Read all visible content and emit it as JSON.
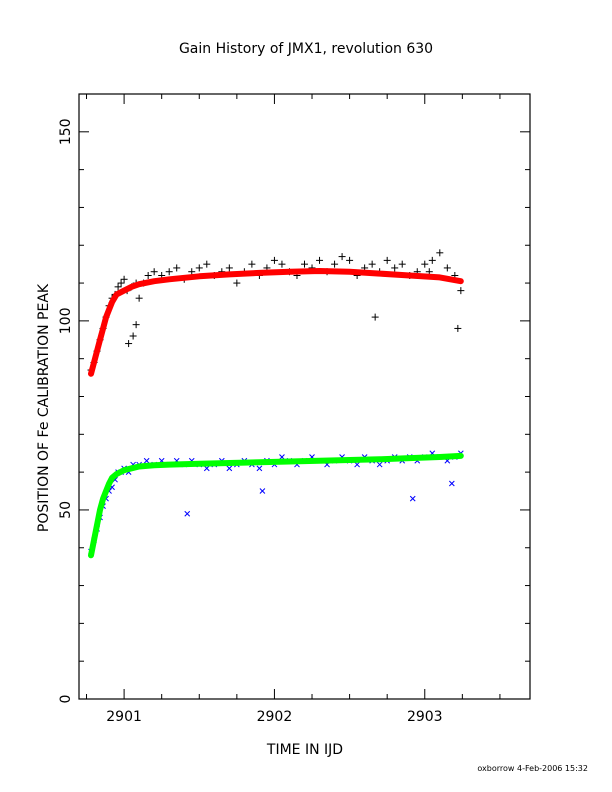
{
  "chart_data": {
    "type": "scatter",
    "title": "Gain History of JMX1, revolution 630",
    "xlabel": "TIME IN IJD",
    "ylabel": "POSITION OF Fe CALIBRATION PEAK",
    "footer": "oxborrow  4-Feb-2006 15:32",
    "xlim": [
      2900.7,
      2903.7
    ],
    "ylim": [
      0,
      160
    ],
    "xticks": [
      2901,
      2902,
      2903
    ],
    "xtick_labels": [
      "2901",
      "2902",
      "2903"
    ],
    "yticks": [
      0,
      50,
      100,
      150
    ],
    "ytick_labels": [
      "0",
      "50",
      "100",
      "150"
    ],
    "grid": false,
    "legend": "none",
    "series": [
      {
        "marker": "plus",
        "color": "#000000",
        "x": [
          2900.78,
          2900.8,
          2900.82,
          2900.84,
          2900.86,
          2900.88,
          2900.9,
          2900.92,
          2900.94,
          2900.96,
          2900.98,
          2901.0,
          2901.02,
          2901.05,
          2901.08,
          2901.1,
          2901.13,
          2901.16,
          2901.2,
          2901.25,
          2901.3,
          2901.35,
          2901.4,
          2901.45,
          2901.5,
          2901.55,
          2901.6,
          2901.65,
          2901.7,
          2901.75,
          2901.8,
          2901.85,
          2901.9,
          2901.95,
          2902.0,
          2902.05,
          2902.1,
          2902.15,
          2902.2,
          2902.25,
          2902.3,
          2902.35,
          2902.4,
          2902.45,
          2902.5,
          2902.55,
          2902.6,
          2902.65,
          2902.7,
          2902.75,
          2902.8,
          2902.85,
          2902.9,
          2902.95,
          2903.0,
          2903.05,
          2903.1,
          2903.15,
          2903.2,
          2903.24,
          2903.03,
          2901.03,
          2901.06,
          2901.08,
          2902.67,
          2903.22
        ],
        "values": [
          87,
          89,
          92,
          95,
          98,
          101,
          104,
          106,
          107,
          109,
          110,
          111,
          108,
          109,
          110,
          106,
          110,
          112,
          113,
          112,
          113,
          114,
          111,
          113,
          114,
          115,
          112,
          113,
          114,
          110,
          113,
          115,
          112,
          114,
          116,
          115,
          113,
          112,
          115,
          114,
          116,
          113,
          115,
          117,
          116,
          112,
          114,
          115,
          113,
          116,
          114,
          115,
          112,
          113,
          115,
          116,
          118,
          114,
          112,
          108,
          113,
          94,
          96,
          99,
          101,
          98
        ]
      },
      {
        "marker": "cross",
        "color": "#0000ff",
        "x": [
          2900.78,
          2900.8,
          2900.82,
          2900.84,
          2900.86,
          2900.88,
          2900.9,
          2900.92,
          2900.94,
          2900.96,
          2900.98,
          2901.0,
          2901.03,
          2901.06,
          2901.1,
          2901.15,
          2901.2,
          2901.25,
          2901.3,
          2901.35,
          2901.4,
          2901.45,
          2901.5,
          2901.55,
          2901.6,
          2901.65,
          2901.7,
          2901.75,
          2901.8,
          2901.85,
          2901.9,
          2901.95,
          2902.0,
          2902.05,
          2902.1,
          2902.15,
          2902.2,
          2902.25,
          2902.3,
          2902.35,
          2902.4,
          2902.45,
          2902.5,
          2902.55,
          2902.6,
          2902.65,
          2902.7,
          2902.75,
          2902.8,
          2902.85,
          2902.9,
          2902.95,
          2903.0,
          2903.05,
          2903.1,
          2903.15,
          2903.2,
          2903.24,
          2901.42,
          2901.92,
          2902.92,
          2903.18
        ],
        "values": [
          39,
          42,
          45,
          48,
          51,
          53,
          55,
          56,
          58,
          60,
          60,
          61,
          60,
          62,
          62,
          63,
          62,
          63,
          62,
          63,
          62,
          63,
          62,
          61,
          62,
          63,
          61,
          62,
          63,
          62,
          61,
          63,
          62,
          64,
          63,
          62,
          63,
          64,
          63,
          62,
          63,
          64,
          63,
          62,
          64,
          63,
          62,
          63,
          64,
          63,
          64,
          63,
          64,
          65,
          64,
          63,
          64,
          65,
          49,
          55,
          53,
          57
        ]
      },
      {
        "name": "",
        "type": "fit",
        "color": "#ff0000",
        "x": [
          2900.78,
          2900.8,
          2900.82,
          2900.84,
          2900.86,
          2900.88,
          2900.9,
          2900.92,
          2900.95,
          2901.0,
          2901.05,
          2901.1,
          2901.2,
          2901.3,
          2901.5,
          2901.7,
          2901.9,
          2902.1,
          2902.3,
          2902.5,
          2902.7,
          2902.9,
          2903.1,
          2903.24
        ],
        "values": [
          86,
          89,
          92,
          95,
          98,
          101,
          103,
          105,
          107,
          108,
          109,
          109.7,
          110.5,
          111,
          111.8,
          112.3,
          112.7,
          113,
          113.2,
          113,
          112.5,
          112,
          111.5,
          110.5
        ]
      },
      {
        "name": "",
        "type": "fit",
        "color": "#00ff00",
        "x": [
          2900.78,
          2900.8,
          2900.82,
          2900.84,
          2900.86,
          2900.88,
          2900.9,
          2900.92,
          2900.95,
          2901.0,
          2901.05,
          2901.1,
          2901.2,
          2901.3,
          2901.5,
          2901.7,
          2901.9,
          2902.1,
          2902.3,
          2902.5,
          2902.7,
          2902.9,
          2903.1,
          2903.24
        ],
        "values": [
          38,
          42,
          46,
          50,
          53,
          55,
          57,
          58.5,
          59.5,
          60.5,
          61,
          61.5,
          61.8,
          62,
          62.2,
          62.4,
          62.6,
          62.8,
          63,
          63.2,
          63.4,
          63.7,
          64,
          64.3
        ]
      }
    ]
  }
}
